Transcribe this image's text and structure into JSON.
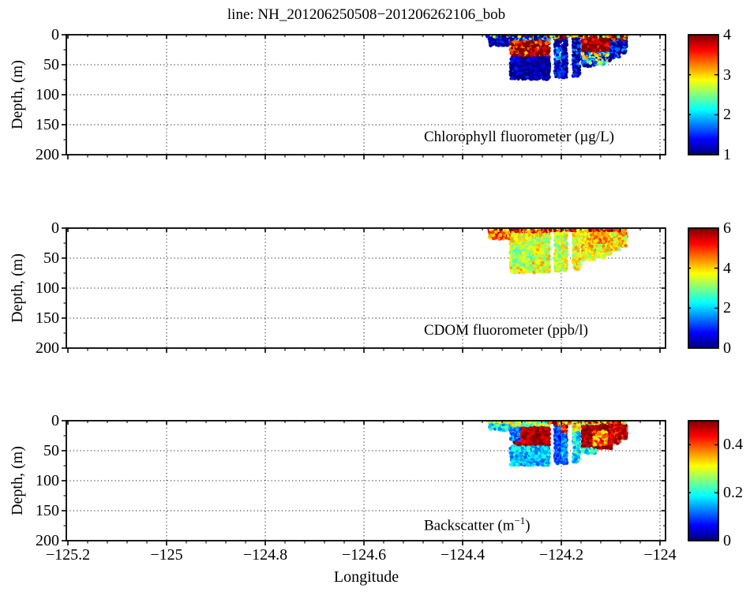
{
  "figure": {
    "title": "line: NH_201206250508−201206262106_bob",
    "xlabel": "Longitude",
    "background": "#ffffff",
    "text_color": "#000000",
    "colormap_name": "jet"
  },
  "chart_data": [
    {
      "type": "heatmap",
      "id": "chlorophyll",
      "caption": [
        {
          "t": "Chlorophyll fluorometer (µg/L)",
          "sup": false
        }
      ],
      "ylabel": "Depth, (m)",
      "xlim": [
        -125.2,
        -123.99
      ],
      "ylim": [
        0,
        200
      ],
      "y_axis_reversed": true,
      "grid": "dotted",
      "colormap": "jet",
      "show_x_tick_labels": false,
      "x_ticks": [
        -125.2,
        -125,
        -124.8,
        -124.6,
        -124.4,
        -124.2,
        -124
      ],
      "x_tick_labels": [
        "−125.2",
        "−125",
        "−124.8",
        "−124.6",
        "−124.4",
        "−124.2",
        "−124"
      ],
      "x_minor_step": 0.04,
      "y_ticks": [
        0,
        50,
        100,
        150,
        200
      ],
      "y_tick_labels": [
        "0",
        "50",
        "100",
        "150",
        "200"
      ],
      "y_minor_step": 25,
      "colorbar": {
        "min": 1,
        "max": 4,
        "labels": [
          {
            "v": 4,
            "t": "4"
          },
          {
            "v": 3,
            "t": "3"
          },
          {
            "v": 2,
            "t": "2"
          },
          {
            "v": 1,
            "t": "1"
          }
        ],
        "marks": [
          3,
          2
        ]
      },
      "cells_format": [
        "lon_start",
        "lon_end",
        "depth_start_m",
        "depth_end_m",
        "value",
        "spread"
      ],
      "cells": [
        [
          -124.346,
          -124.303,
          4,
          18,
          1.15,
          0.5
        ],
        [
          -124.303,
          -124.224,
          0,
          11,
          1.45,
          1.1
        ],
        [
          -124.303,
          -124.224,
          11,
          38,
          3.9,
          0.9
        ],
        [
          -124.303,
          -124.224,
          38,
          74,
          1.1,
          0.4
        ],
        [
          -124.213,
          -124.2016,
          0,
          71,
          1.2,
          0.5
        ],
        [
          -124.213,
          -124.196,
          0,
          7,
          3.4,
          1.6
        ],
        [
          -124.211,
          -124.197,
          22,
          40,
          2.0,
          0.8
        ],
        [
          -124.198,
          -124.189,
          0,
          71,
          1.2,
          0.5
        ],
        [
          -124.176,
          -124.163,
          2,
          69,
          1.25,
          0.55
        ],
        [
          -124.158,
          -124.098,
          0,
          31,
          3.95,
          0.55
        ],
        [
          -124.158,
          -124.1,
          31,
          44,
          2.1,
          1.3
        ],
        [
          -124.158,
          -124.132,
          44,
          53,
          1.7,
          1.0
        ],
        [
          -124.132,
          -124.112,
          42,
          49,
          2.0,
          1.0
        ],
        [
          -124.1,
          -124.082,
          8,
          38,
          1.25,
          0.6
        ],
        [
          -124.082,
          -124.068,
          8,
          30,
          1.25,
          0.6
        ],
        [
          -124.098,
          -124.066,
          0,
          8,
          3.85,
          0.9
        ],
        [
          -124.35,
          -124.225,
          0,
          3,
          2.3,
          3.0
        ],
        [
          -124.225,
          -124.07,
          0,
          4,
          3.7,
          1.6
        ]
      ]
    },
    {
      "type": "heatmap",
      "id": "cdom",
      "caption": [
        {
          "t": "CDOM fluorometer (ppb/l)",
          "sup": false
        }
      ],
      "ylabel": "Depth, (m)",
      "xlim": [
        -125.2,
        -123.99
      ],
      "ylim": [
        0,
        200
      ],
      "y_axis_reversed": true,
      "grid": "dotted",
      "colormap": "jet",
      "show_x_tick_labels": false,
      "x_ticks": [
        -125.2,
        -125,
        -124.8,
        -124.6,
        -124.4,
        -124.2,
        -124
      ],
      "x_tick_labels": [
        "−125.2",
        "−125",
        "−124.8",
        "−124.6",
        "−124.4",
        "−124.2",
        "−124"
      ],
      "x_minor_step": 0.04,
      "y_ticks": [
        0,
        50,
        100,
        150,
        200
      ],
      "y_tick_labels": [
        "0",
        "50",
        "100",
        "150",
        "200"
      ],
      "y_minor_step": 25,
      "colorbar": {
        "min": 0,
        "max": 6,
        "labels": [
          {
            "v": 6,
            "t": "6"
          },
          {
            "v": 4,
            "t": "4"
          },
          {
            "v": 2,
            "t": "2"
          },
          {
            "v": 0,
            "t": "0"
          }
        ],
        "marks": [
          4,
          2
        ]
      },
      "cells_format": [
        "lon_start",
        "lon_end",
        "depth_start_m",
        "depth_end_m",
        "value",
        "spread"
      ],
      "cells": [
        [
          -124.346,
          -124.303,
          4,
          18,
          4.7,
          1.0
        ],
        [
          -124.303,
          -124.224,
          0,
          10,
          4.8,
          1.0
        ],
        [
          -124.303,
          -124.224,
          10,
          74,
          3.6,
          0.8
        ],
        [
          -124.298,
          -124.262,
          30,
          62,
          3.15,
          0.6
        ],
        [
          -124.213,
          -124.2016,
          0,
          71,
          3.4,
          0.7
        ],
        [
          -124.213,
          -124.196,
          0,
          6,
          4.7,
          1.0
        ],
        [
          -124.198,
          -124.189,
          0,
          71,
          3.5,
          0.7
        ],
        [
          -124.176,
          -124.163,
          2,
          69,
          3.7,
          0.7
        ],
        [
          -124.158,
          -124.098,
          0,
          7,
          5.0,
          1.0
        ],
        [
          -124.158,
          -124.1,
          7,
          44,
          3.9,
          0.8
        ],
        [
          -124.135,
          -124.108,
          8,
          24,
          4.5,
          0.9
        ],
        [
          -124.158,
          -124.132,
          44,
          53,
          3.6,
          0.7
        ],
        [
          -124.132,
          -124.112,
          42,
          49,
          3.7,
          0.7
        ],
        [
          -124.1,
          -124.082,
          4,
          38,
          3.8,
          0.8
        ],
        [
          -124.082,
          -124.068,
          4,
          30,
          4.0,
          0.9
        ],
        [
          -124.35,
          -124.225,
          0,
          3,
          4.9,
          1.6
        ],
        [
          -124.225,
          -124.07,
          0,
          4,
          5.0,
          1.4
        ]
      ]
    },
    {
      "type": "heatmap",
      "id": "backscatter",
      "caption": [
        {
          "t": "Backscatter (m",
          "sup": false
        },
        {
          "t": "−1",
          "sup": true
        },
        {
          "t": ")",
          "sup": false
        }
      ],
      "ylabel": "Depth, (m)",
      "xlim": [
        -125.2,
        -123.99
      ],
      "ylim": [
        0,
        200
      ],
      "y_axis_reversed": true,
      "grid": "dotted",
      "colormap": "jet",
      "show_x_tick_labels": true,
      "x_ticks": [
        -125.2,
        -125,
        -124.8,
        -124.6,
        -124.4,
        -124.2,
        -124
      ],
      "x_tick_labels": [
        "−125.2",
        "−125",
        "−124.8",
        "−124.6",
        "−124.4",
        "−124.2",
        "−124"
      ],
      "x_minor_step": 0.04,
      "y_ticks": [
        0,
        50,
        100,
        150,
        200
      ],
      "y_tick_labels": [
        "0",
        "50",
        "100",
        "150",
        "200"
      ],
      "y_minor_step": 25,
      "colorbar": {
        "min": 0,
        "max": 0.5,
        "labels": [
          {
            "v": 0.4,
            "t": "0.4"
          },
          {
            "v": 0.2,
            "t": "0.2"
          },
          {
            "v": 0,
            "t": "0"
          }
        ],
        "marks": [
          0.4,
          0.2
        ]
      },
      "cells_format": [
        "lon_start",
        "lon_end",
        "depth_start_m",
        "depth_end_m",
        "value",
        "spread"
      ],
      "cells": [
        [
          -124.346,
          -124.303,
          4,
          16,
          0.18,
          0.07
        ],
        [
          -124.303,
          -124.224,
          40,
          74,
          0.165,
          0.06
        ],
        [
          -124.295,
          -124.224,
          8,
          40,
          0.485,
          0.05
        ],
        [
          -124.303,
          -124.285,
          8,
          32,
          0.12,
          0.06
        ],
        [
          -124.303,
          -124.224,
          0,
          8,
          0.27,
          0.09
        ],
        [
          -124.213,
          -124.2016,
          7,
          71,
          0.1,
          0.05
        ],
        [
          -124.213,
          -124.196,
          0,
          7,
          0.4,
          0.1
        ],
        [
          -124.198,
          -124.189,
          0,
          22,
          0.44,
          0.08
        ],
        [
          -124.198,
          -124.189,
          22,
          71,
          0.13,
          0.06
        ],
        [
          -124.176,
          -124.163,
          0,
          20,
          0.3,
          0.08
        ],
        [
          -124.176,
          -124.163,
          20,
          69,
          0.18,
          0.07
        ],
        [
          -124.158,
          -124.098,
          0,
          46,
          0.485,
          0.04
        ],
        [
          -124.158,
          -124.12,
          0,
          5,
          0.28,
          0.1
        ],
        [
          -124.135,
          -124.108,
          18,
          40,
          0.37,
          0.09
        ],
        [
          -124.158,
          -124.13,
          46,
          54,
          0.2,
          0.08
        ],
        [
          -124.1,
          -124.082,
          5,
          38,
          0.46,
          0.07
        ],
        [
          -124.082,
          -124.068,
          5,
          30,
          0.47,
          0.07
        ],
        [
          -124.35,
          -124.225,
          0,
          3,
          0.26,
          0.12
        ],
        [
          -124.225,
          -124.07,
          0,
          4,
          0.38,
          0.14
        ]
      ]
    }
  ]
}
